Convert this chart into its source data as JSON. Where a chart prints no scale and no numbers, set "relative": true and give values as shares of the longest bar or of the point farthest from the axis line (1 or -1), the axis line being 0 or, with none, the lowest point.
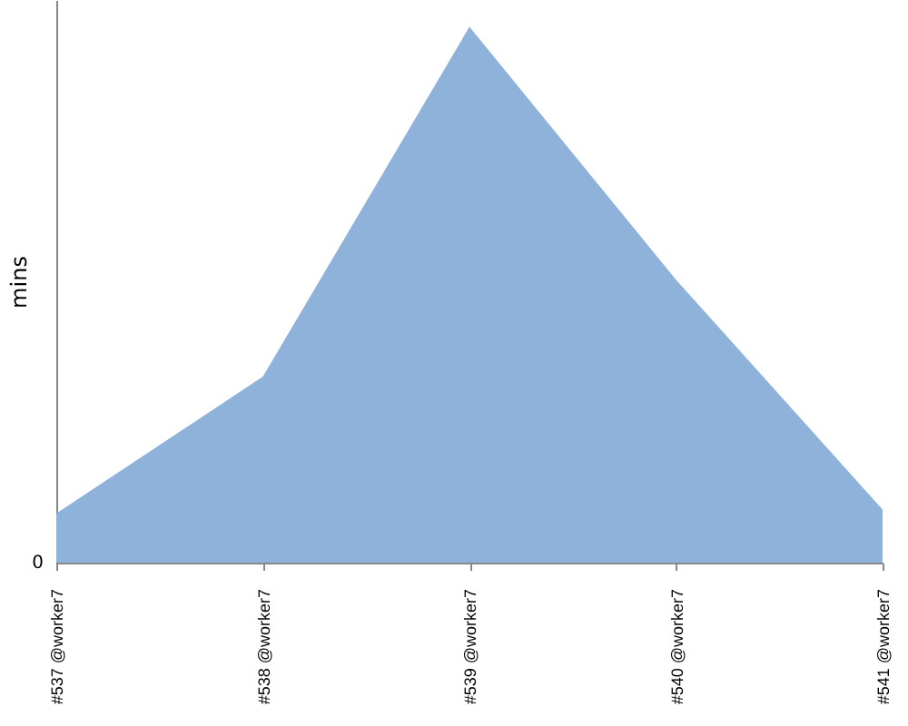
{
  "chart_data": {
    "type": "area",
    "relative": true,
    "ylabel": "mins",
    "categories": [
      "#537 @worker7",
      "#538 @worker7",
      "#539 @worker7",
      "#540 @worker7",
      "#541 @worker7"
    ],
    "series": [
      {
        "color": "#8fb2db",
        "values": [
          0.092,
          0.347,
          1,
          0.528,
          0.099
        ]
      }
    ],
    "annotations": [
      "0"
    ],
    "grid": false,
    "legend": false
  }
}
